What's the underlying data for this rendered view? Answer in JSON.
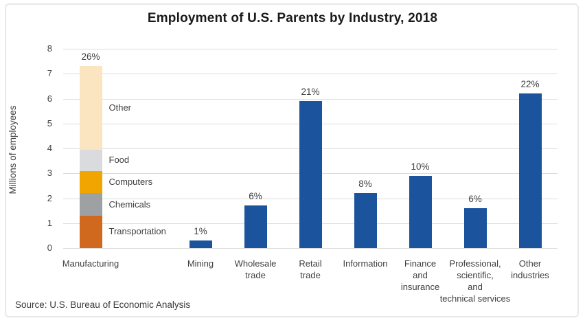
{
  "chart_data": {
    "type": "bar",
    "title": "Employment of U.S. Parents by Industry, 2018",
    "ylabel": "Millions of employees",
    "source": "Source: U.S. Bureau of Economic Analysis",
    "ylim": [
      0,
      8
    ],
    "yticks": [
      0,
      1,
      2,
      3,
      4,
      5,
      6,
      7,
      8
    ],
    "grid": true,
    "legend_position": "inline-right-of-stacked-bar",
    "bar_color": "#1b539d",
    "text_color": "#3f3f3f",
    "bars": [
      {
        "category": "Manufacturing",
        "label_lines": [
          "Manufacturing"
        ],
        "percent": "26%",
        "total": 7.3,
        "segments": [
          {
            "name": "Transportation",
            "value": 1.3,
            "color": "#d0691e"
          },
          {
            "name": "Chemicals",
            "value": 0.9,
            "color": "#9da1a4"
          },
          {
            "name": "Computers",
            "value": 0.9,
            "color": "#f0a500"
          },
          {
            "name": "Food",
            "value": 0.85,
            "color": "#dadbdf"
          },
          {
            "name": "Other",
            "value": 3.35,
            "color": "#fbe5c1"
          }
        ]
      },
      {
        "category": "Mining",
        "label_lines": [
          "Mining"
        ],
        "percent": "1%",
        "total": 0.3
      },
      {
        "category": "Wholesale trade",
        "label_lines": [
          "Wholesale",
          "trade"
        ],
        "percent": "6%",
        "total": 1.7
      },
      {
        "category": "Retail trade",
        "label_lines": [
          "Retail",
          "trade"
        ],
        "percent": "21%",
        "total": 5.9
      },
      {
        "category": "Information",
        "label_lines": [
          "Information"
        ],
        "percent": "8%",
        "total": 2.2
      },
      {
        "category": "Finance and insurance",
        "label_lines": [
          "Finance",
          "and",
          "insurance"
        ],
        "percent": "10%",
        "total": 2.9
      },
      {
        "category": "Professional, scientific, and technical services",
        "label_lines": [
          "Professional,",
          "scientific,",
          "and",
          "technical services"
        ],
        "percent": "6%",
        "total": 1.6
      },
      {
        "category": "Other industries",
        "label_lines": [
          "Other",
          "industries"
        ],
        "percent": "22%",
        "total": 6.2
      }
    ]
  }
}
